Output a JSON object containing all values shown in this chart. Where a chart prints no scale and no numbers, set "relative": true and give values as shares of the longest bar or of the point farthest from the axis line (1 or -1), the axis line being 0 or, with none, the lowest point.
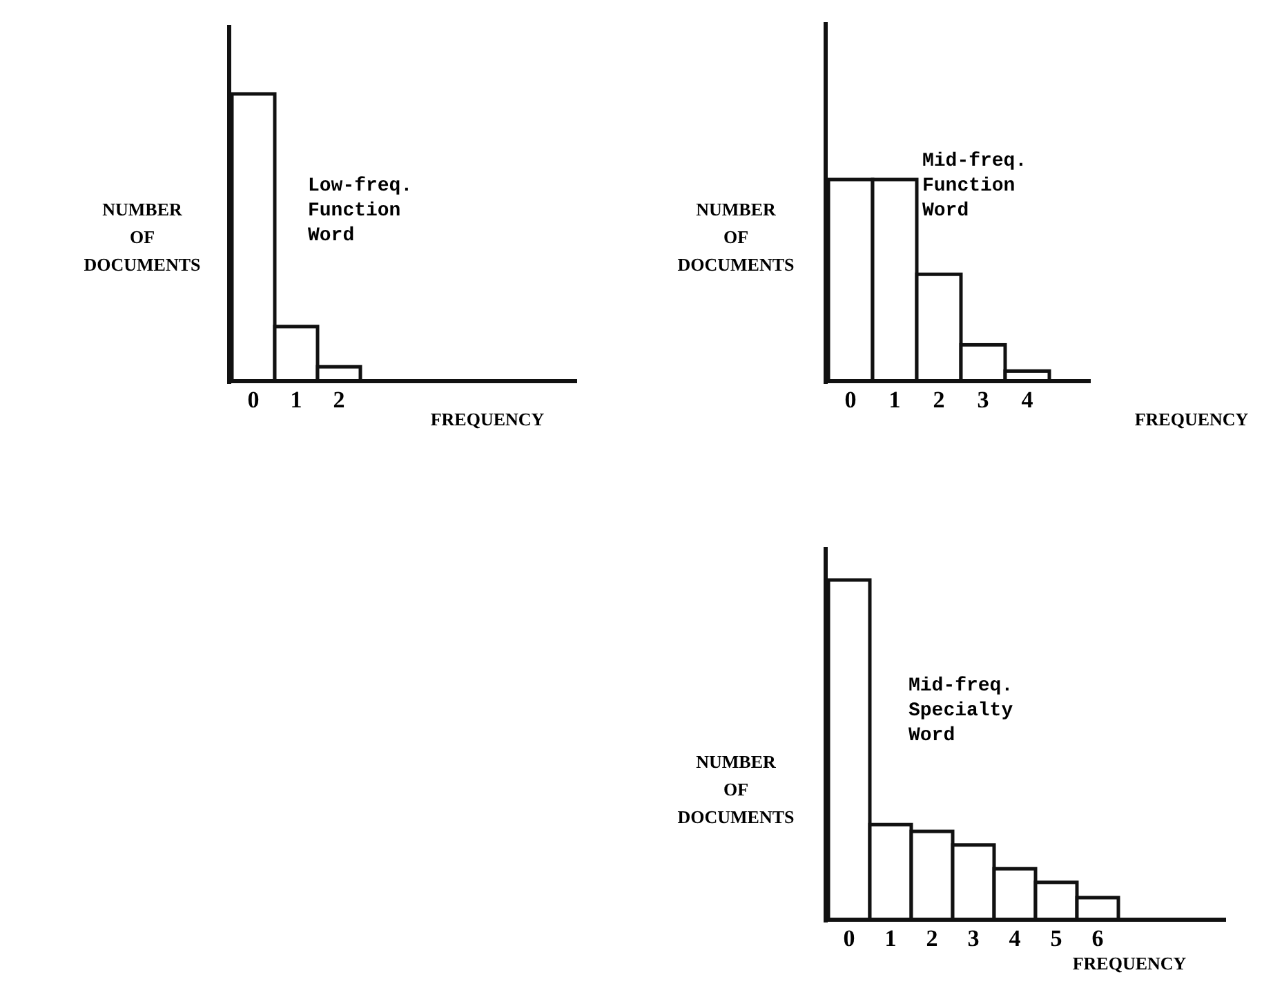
{
  "chart_data": [
    {
      "type": "bar",
      "relative": true,
      "categories": [
        "0",
        "1",
        "2"
      ],
      "values": [
        1,
        0.19,
        0.05
      ],
      "color": "#ffffff",
      "ylabel": "NUMBER\nOF\nDOCUMENTS",
      "xlabel": "FREQUENCY",
      "annotations": [
        "Low-freq.\nFunction\nWord"
      ]
    },
    {
      "type": "bar",
      "relative": true,
      "categories": [
        "0",
        "1",
        "2",
        "3",
        "4"
      ],
      "values": [
        1,
        1,
        0.53,
        0.18,
        0.05
      ],
      "color": "#ffffff",
      "ylabel": "NUMBER\nOF\nDOCUMENTS",
      "xlabel": "FREQUENCY",
      "annotations": [
        "Mid-freq.\nFunction\nWord"
      ]
    },
    {
      "type": "bar",
      "relative": true,
      "categories": [
        "0",
        "1",
        "2",
        "3",
        "4",
        "5",
        "6"
      ],
      "values": [
        1,
        0.28,
        0.26,
        0.22,
        0.15,
        0.11,
        0.065
      ],
      "color": "#ffffff",
      "ylabel": "NUMBER\nOF\nDOCUMENTS",
      "xlabel": "FREQUENCY",
      "annotations": [
        "Mid-freq.\nSpecialty\nWord"
      ]
    }
  ]
}
